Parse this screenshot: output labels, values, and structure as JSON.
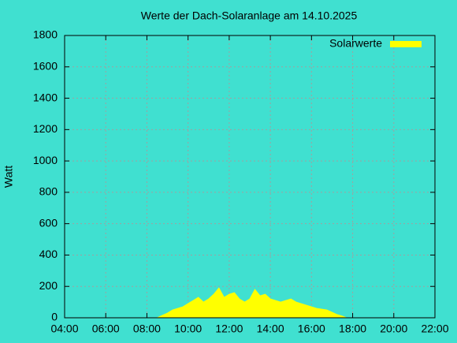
{
  "chart_data": {
    "type": "area",
    "title": "Werte der Dach-Solaranlage am 14.10.2025",
    "y_label": "Watt",
    "series": [
      {
        "name": "Solarwerte",
        "color": "#ffff00",
        "x": [
          8.5,
          8.75,
          9.0,
          9.25,
          9.5,
          9.75,
          10.0,
          10.25,
          10.5,
          10.75,
          11.0,
          11.25,
          11.5,
          11.75,
          12.0,
          12.25,
          12.5,
          12.75,
          13.0,
          13.25,
          13.5,
          13.75,
          14.0,
          14.25,
          14.5,
          14.75,
          15.0,
          15.25,
          15.5,
          15.75,
          16.0,
          16.25,
          16.5,
          16.75,
          17.0,
          17.25,
          17.5,
          17.7
        ],
        "values": [
          0,
          15,
          30,
          50,
          60,
          70,
          90,
          110,
          130,
          100,
          120,
          150,
          190,
          130,
          150,
          160,
          120,
          100,
          120,
          180,
          140,
          150,
          120,
          110,
          100,
          110,
          120,
          100,
          90,
          80,
          70,
          60,
          55,
          50,
          35,
          20,
          10,
          0
        ]
      }
    ],
    "xlim": [
      4,
      22
    ],
    "xticks": [
      {
        "value": 4,
        "label": "04:00"
      },
      {
        "value": 6,
        "label": "06:00"
      },
      {
        "value": 8,
        "label": "08:00"
      },
      {
        "value": 10,
        "label": "10:00"
      },
      {
        "value": 12,
        "label": "12:00"
      },
      {
        "value": 14,
        "label": "14:00"
      },
      {
        "value": 16,
        "label": "16:00"
      },
      {
        "value": 18,
        "label": "18:00"
      },
      {
        "value": 20,
        "label": "20:00"
      },
      {
        "value": 22,
        "label": "22:00"
      }
    ],
    "ylim": [
      0,
      1800
    ],
    "yticks": [
      0,
      200,
      400,
      600,
      800,
      1000,
      1200,
      1400,
      1600,
      1800
    ],
    "grid": true,
    "legend": "top-right"
  }
}
